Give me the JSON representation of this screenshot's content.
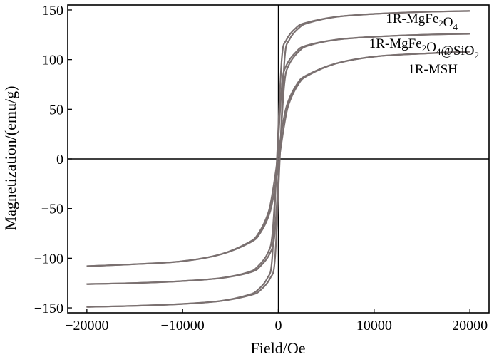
{
  "chart_data": {
    "type": "line",
    "title": "",
    "xlabel": "Field/Oe",
    "ylabel": "Magnetization/(emu/g)",
    "xlim": [
      -22000,
      22000
    ],
    "ylim": [
      -155,
      155
    ],
    "xticks": [
      -20000,
      -10000,
      0,
      10000,
      20000
    ],
    "xtick_labels": [
      "−20000",
      "−10000",
      "0",
      "10000",
      "20000"
    ],
    "yticks": [
      -150,
      -100,
      -50,
      0,
      50,
      100,
      150
    ],
    "ytick_labels": [
      "−150",
      "−100",
      "−50",
      "0",
      "50",
      "100",
      "150"
    ],
    "grid": false,
    "legend": "none",
    "line_color": "#7a7070",
    "series": [
      {
        "name": "1R-MgFe2O4",
        "label_parts": [
          {
            "t": "1R-MgFe"
          },
          {
            "t": "2",
            "sub": true
          },
          {
            "t": "O"
          },
          {
            "t": "4",
            "sub": true
          }
        ],
        "x": [
          -20000,
          -15000,
          -10000,
          -6000,
          -3000,
          -2000,
          -1000,
          -500,
          0,
          500,
          1000,
          2000,
          3000,
          6000,
          10000,
          15000,
          20000
        ],
        "y": [
          -149,
          -148,
          -146,
          -143,
          -137,
          -132,
          -120,
          -100,
          0,
          100,
          120,
          132,
          137,
          143,
          146,
          148,
          149
        ],
        "loop_offset_oe": 150
      },
      {
        "name": "1R-MgFe2O4@SiO2",
        "label_parts": [
          {
            "t": "1R-MgFe"
          },
          {
            "t": "2",
            "sub": true
          },
          {
            "t": "O"
          },
          {
            "t": "4",
            "sub": true
          },
          {
            "t": "@SiO"
          },
          {
            "t": "2",
            "sub": true
          }
        ],
        "x": [
          -20000,
          -15000,
          -10000,
          -6000,
          -3000,
          -2000,
          -1000,
          -500,
          0,
          500,
          1000,
          2000,
          3000,
          6000,
          10000,
          15000,
          20000
        ],
        "y": [
          -126,
          -125,
          -123,
          -120,
          -114,
          -108,
          -95,
          -75,
          0,
          75,
          95,
          108,
          114,
          120,
          123,
          125,
          126
        ],
        "loop_offset_oe": 120
      },
      {
        "name": "1R-MSH",
        "label_parts": [
          {
            "t": "1R-MSH"
          }
        ],
        "x": [
          -20000,
          -15000,
          -10000,
          -6000,
          -3000,
          -2000,
          -1000,
          -500,
          0,
          500,
          1000,
          2000,
          3000,
          6000,
          10000,
          15000,
          20000
        ],
        "y": [
          -108,
          -106,
          -103,
          -96,
          -84,
          -75,
          -55,
          -32,
          0,
          32,
          55,
          75,
          84,
          96,
          103,
          106,
          108
        ],
        "loop_offset_oe": 80
      }
    ]
  }
}
